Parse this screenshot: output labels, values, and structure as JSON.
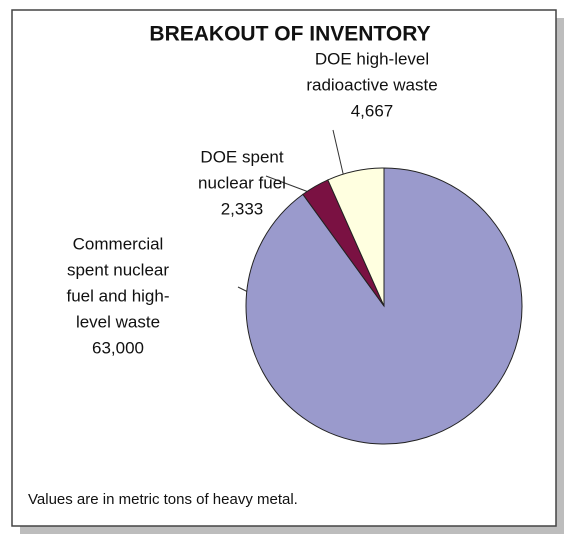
{
  "chart_data": {
    "type": "pie",
    "title": "BREAKOUT OF INVENTORY",
    "categories": [
      [
        "Commercial",
        "spent nuclear",
        "fuel and high-",
        "level waste"
      ],
      [
        "DOE spent",
        "nuclear fuel"
      ],
      [
        "DOE high-level",
        "radioactive waste"
      ]
    ],
    "values": [
      63000,
      2333,
      4667
    ],
    "value_labels": [
      "63,000",
      "2,333",
      "4,667"
    ],
    "colors": [
      "#9a9acc",
      "#7a1142",
      "#ffffe0"
    ],
    "note": "Values are in metric tons of heavy metal."
  }
}
